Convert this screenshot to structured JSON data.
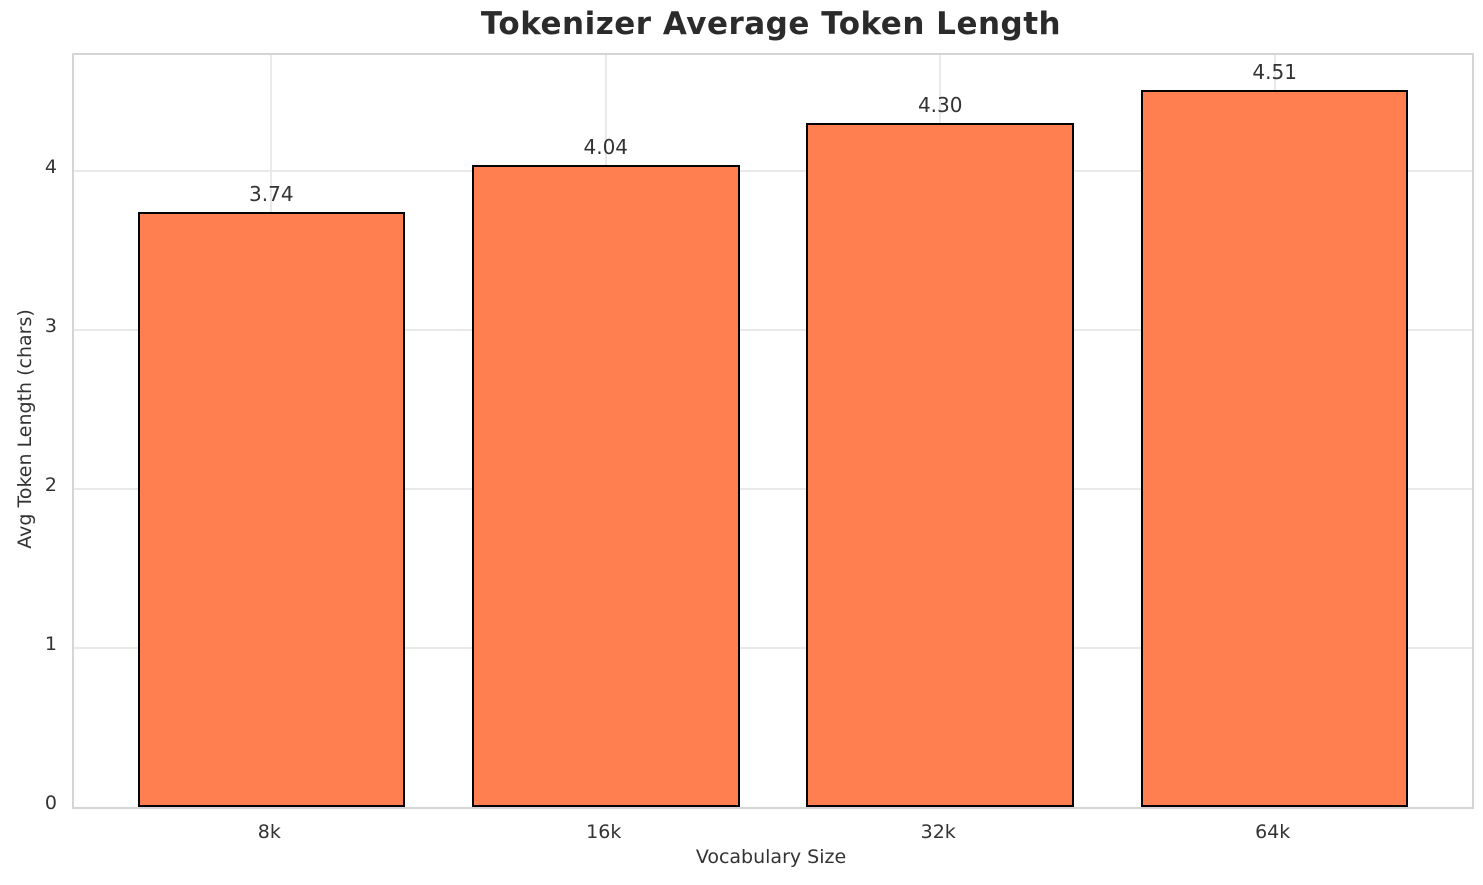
{
  "chart_data": {
    "type": "bar",
    "title": "Tokenizer Average Token Length",
    "xlabel": "Vocabulary Size",
    "ylabel": "Avg Token Length (chars)",
    "categories": [
      "8k",
      "16k",
      "32k",
      "64k"
    ],
    "values": [
      3.74,
      4.04,
      4.3,
      4.51
    ],
    "value_labels": [
      "3.74",
      "4.04",
      "4.30",
      "4.51"
    ],
    "yticks": [
      0,
      1,
      2,
      3,
      4
    ],
    "ylim": [
      0,
      4.73
    ],
    "grid": true,
    "legend_position": "none",
    "bar_color": "#FF7F50",
    "bar_edge_color": "#000000",
    "colors": {
      "grid": "#e9e9e9",
      "spine": "#d5d5d5",
      "title_text": "#2b2b2b",
      "tick_text": "#333333",
      "background": "#ffffff"
    }
  }
}
